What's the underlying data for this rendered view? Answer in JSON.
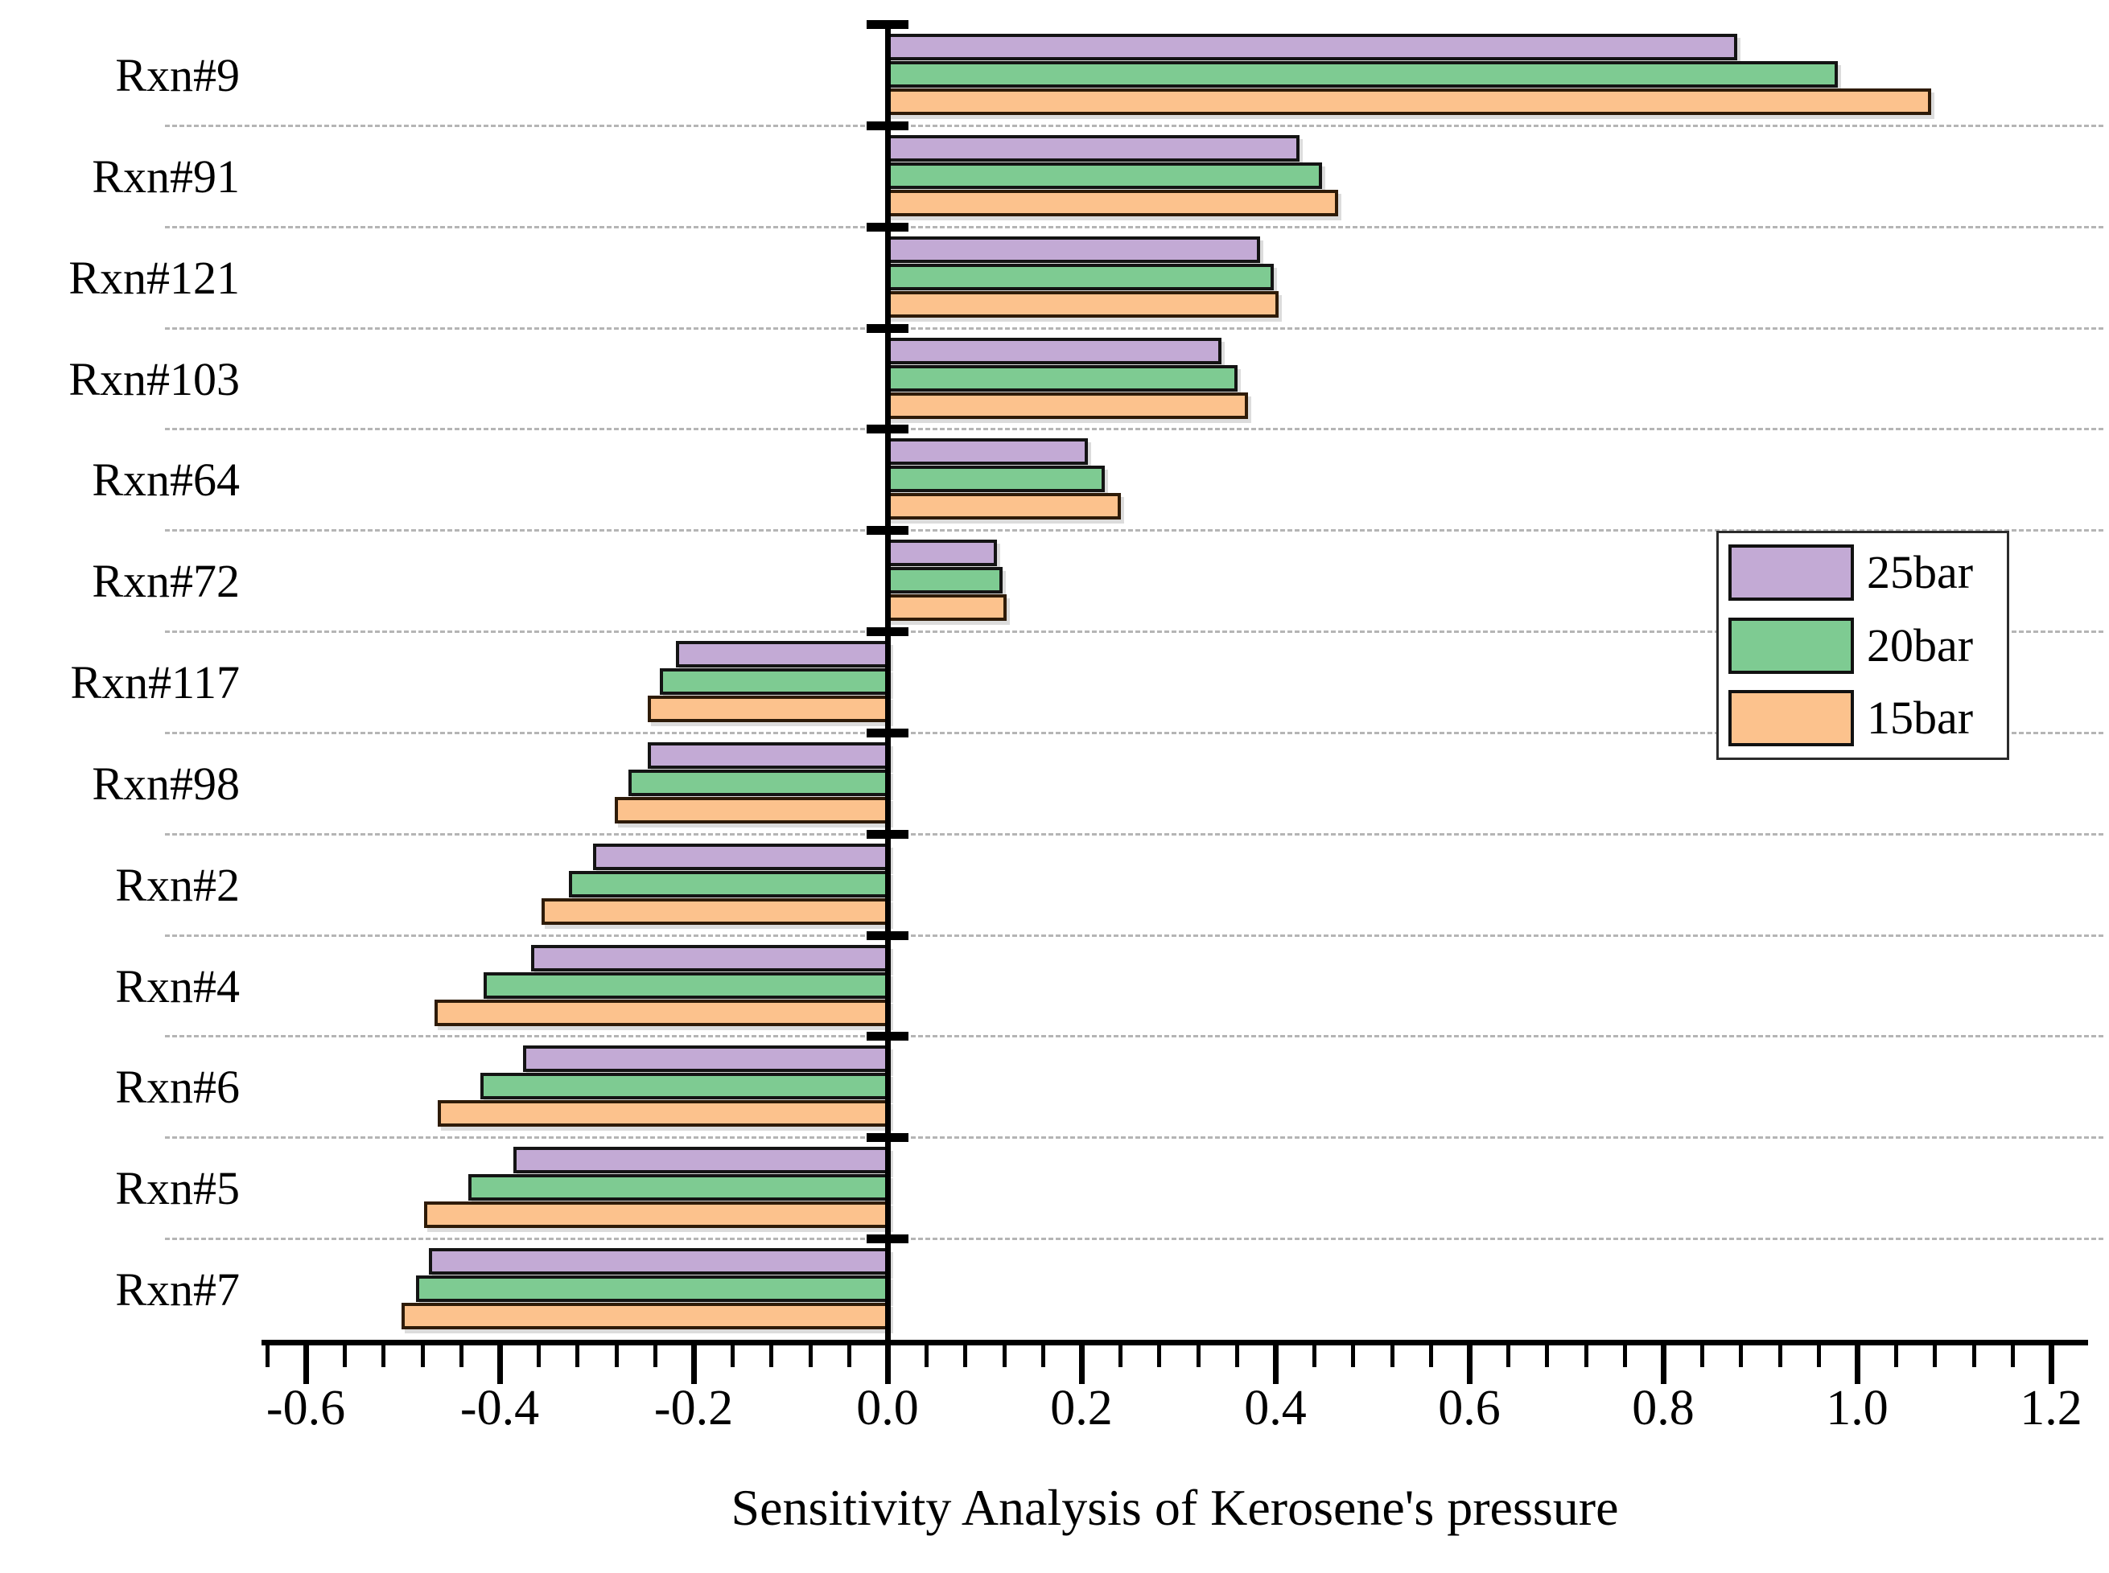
{
  "chart_data": {
    "type": "bar",
    "orientation": "horizontal",
    "title": "Sensitivity Analysis of Kerosene's pressure",
    "categories": [
      "Rxn#9",
      "Rxn#91",
      "Rxn#121",
      "Rxn#103",
      "Rxn#64",
      "Rxn#72",
      "Rxn#117",
      "Rxn#98",
      "Rxn#2",
      "Rxn#4",
      "Rxn#6",
      "Rxn#5",
      "Rxn#7"
    ],
    "series": [
      {
        "name": "25bar",
        "color": "#c3aad5",
        "border_color": "#141414",
        "values": [
          0.876,
          0.425,
          0.384,
          0.344,
          0.207,
          0.113,
          -0.218,
          -0.247,
          -0.304,
          -0.368,
          -0.376,
          -0.386,
          -0.473
        ]
      },
      {
        "name": "20bar",
        "color": "#7ecb92",
        "border_color": "#141414",
        "values": [
          0.98,
          0.448,
          0.398,
          0.361,
          0.224,
          0.119,
          -0.235,
          -0.267,
          -0.329,
          -0.417,
          -0.42,
          -0.432,
          -0.486
        ]
      },
      {
        "name": "15bar",
        "color": "#fcc28d",
        "border_color": "#2e1b08",
        "values": [
          1.076,
          0.465,
          0.403,
          0.372,
          0.241,
          0.123,
          -0.247,
          -0.281,
          -0.357,
          -0.467,
          -0.464,
          -0.478,
          -0.501
        ]
      }
    ],
    "xlabel": "Sensitivity Analysis of Kerosene's pressure",
    "ylabel": "",
    "xticks": [
      "-0.6",
      "-0.4",
      "-0.2",
      "0.0",
      "0.2",
      "0.4",
      "0.6",
      "0.8",
      "1.0",
      "1.2"
    ],
    "xtick_values": [
      -0.6,
      -0.4,
      -0.2,
      0.0,
      0.2,
      0.4,
      0.6,
      0.8,
      1.0,
      1.2
    ],
    "xlim": [
      -0.645,
      1.238
    ],
    "minor_tick_step": 0.04,
    "grid": "horizontal dashed lines between category groups",
    "legend_position": "middle-right",
    "background_color": "#ffffff",
    "axis_color": "#000000",
    "grid_color": "#b5b5b5"
  },
  "legend": {
    "items": [
      {
        "label": "25bar"
      },
      {
        "label": "20bar"
      },
      {
        "label": "15bar"
      }
    ]
  }
}
